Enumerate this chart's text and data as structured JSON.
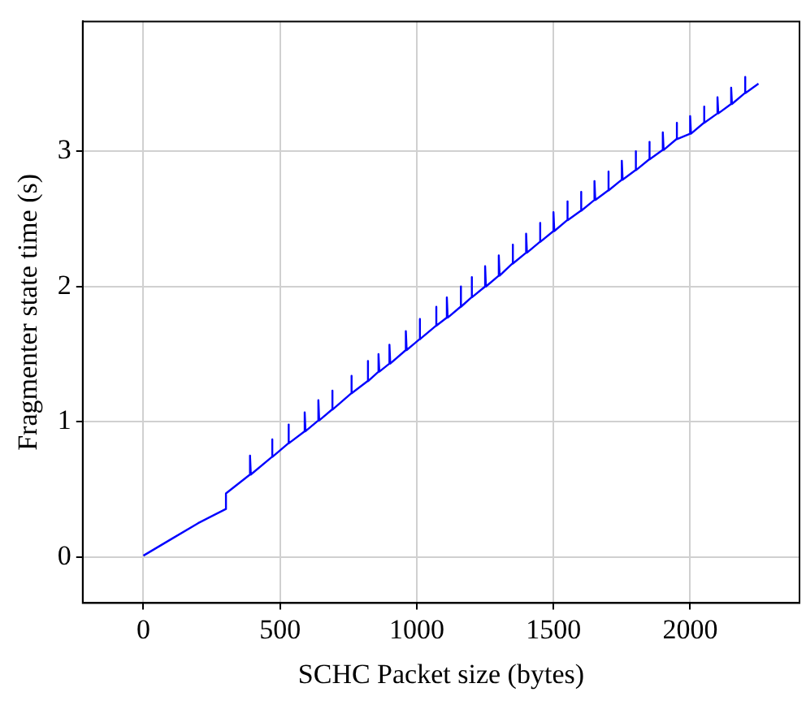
{
  "chart_data": {
    "type": "line",
    "xlabel": "SCHC Packet size (bytes)",
    "ylabel": "Fragmenter state time (s)",
    "x": [
      0,
      100,
      200,
      302,
      302,
      390,
      390,
      393,
      470,
      470,
      473,
      530,
      530,
      533,
      590,
      590,
      593,
      640,
      640,
      643,
      690,
      690,
      693,
      760,
      760,
      763,
      820,
      820,
      823,
      860,
      860,
      863,
      900,
      900,
      903,
      960,
      960,
      963,
      1010,
      1010,
      1013,
      1070,
      1070,
      1073,
      1110,
      1110,
      1113,
      1160,
      1160,
      1163,
      1200,
      1200,
      1203,
      1250,
      1250,
      1253,
      1300,
      1300,
      1303,
      1350,
      1350,
      1353,
      1400,
      1400,
      1403,
      1450,
      1450,
      1453,
      1500,
      1500,
      1503,
      1550,
      1550,
      1553,
      1600,
      1600,
      1603,
      1650,
      1650,
      1653,
      1700,
      1700,
      1703,
      1750,
      1750,
      1753,
      1800,
      1800,
      1803,
      1850,
      1850,
      1853,
      1900,
      1900,
      1903,
      1950,
      1950,
      1953,
      2000,
      2000,
      2003,
      2050,
      2050,
      2053,
      2100,
      2100,
      2103,
      2150,
      2150,
      2153,
      2200,
      2200,
      2203,
      2250
    ],
    "series": [
      {
        "color": "#0000ff",
        "values": [
          0.01,
          0.13,
          0.25,
          0.355,
          0.47,
          0.61,
          0.75,
          0.61,
          0.74,
          0.87,
          0.74,
          0.84,
          0.98,
          0.84,
          0.93,
          1.07,
          0.93,
          1.01,
          1.16,
          1.01,
          1.09,
          1.23,
          1.09,
          1.21,
          1.34,
          1.21,
          1.3,
          1.45,
          1.3,
          1.37,
          1.5,
          1.37,
          1.43,
          1.57,
          1.43,
          1.53,
          1.67,
          1.53,
          1.61,
          1.76,
          1.61,
          1.71,
          1.85,
          1.71,
          1.77,
          1.92,
          1.77,
          1.85,
          2.0,
          1.85,
          1.92,
          2.07,
          1.92,
          2.0,
          2.15,
          2.0,
          2.08,
          2.23,
          2.08,
          2.17,
          2.31,
          2.17,
          2.25,
          2.39,
          2.25,
          2.33,
          2.47,
          2.33,
          2.41,
          2.55,
          2.41,
          2.49,
          2.63,
          2.49,
          2.56,
          2.7,
          2.56,
          2.64,
          2.78,
          2.64,
          2.71,
          2.85,
          2.71,
          2.79,
          2.93,
          2.79,
          2.86,
          3.0,
          2.86,
          2.94,
          3.07,
          2.94,
          3.01,
          3.14,
          3.01,
          3.09,
          3.21,
          3.09,
          3.13,
          3.26,
          3.13,
          3.21,
          3.33,
          3.21,
          3.28,
          3.4,
          3.28,
          3.35,
          3.47,
          3.35,
          3.43,
          3.55,
          3.43,
          3.5
        ]
      }
    ],
    "xlim": [
      -222,
      2400
    ],
    "ylim": [
      -0.34,
      3.96
    ],
    "xticks": [
      0,
      500,
      1000,
      1500,
      2000
    ],
    "yticks": [
      0,
      1,
      2,
      3
    ],
    "grid": true,
    "marker": "none",
    "line_style": "solid",
    "legend": false
  }
}
